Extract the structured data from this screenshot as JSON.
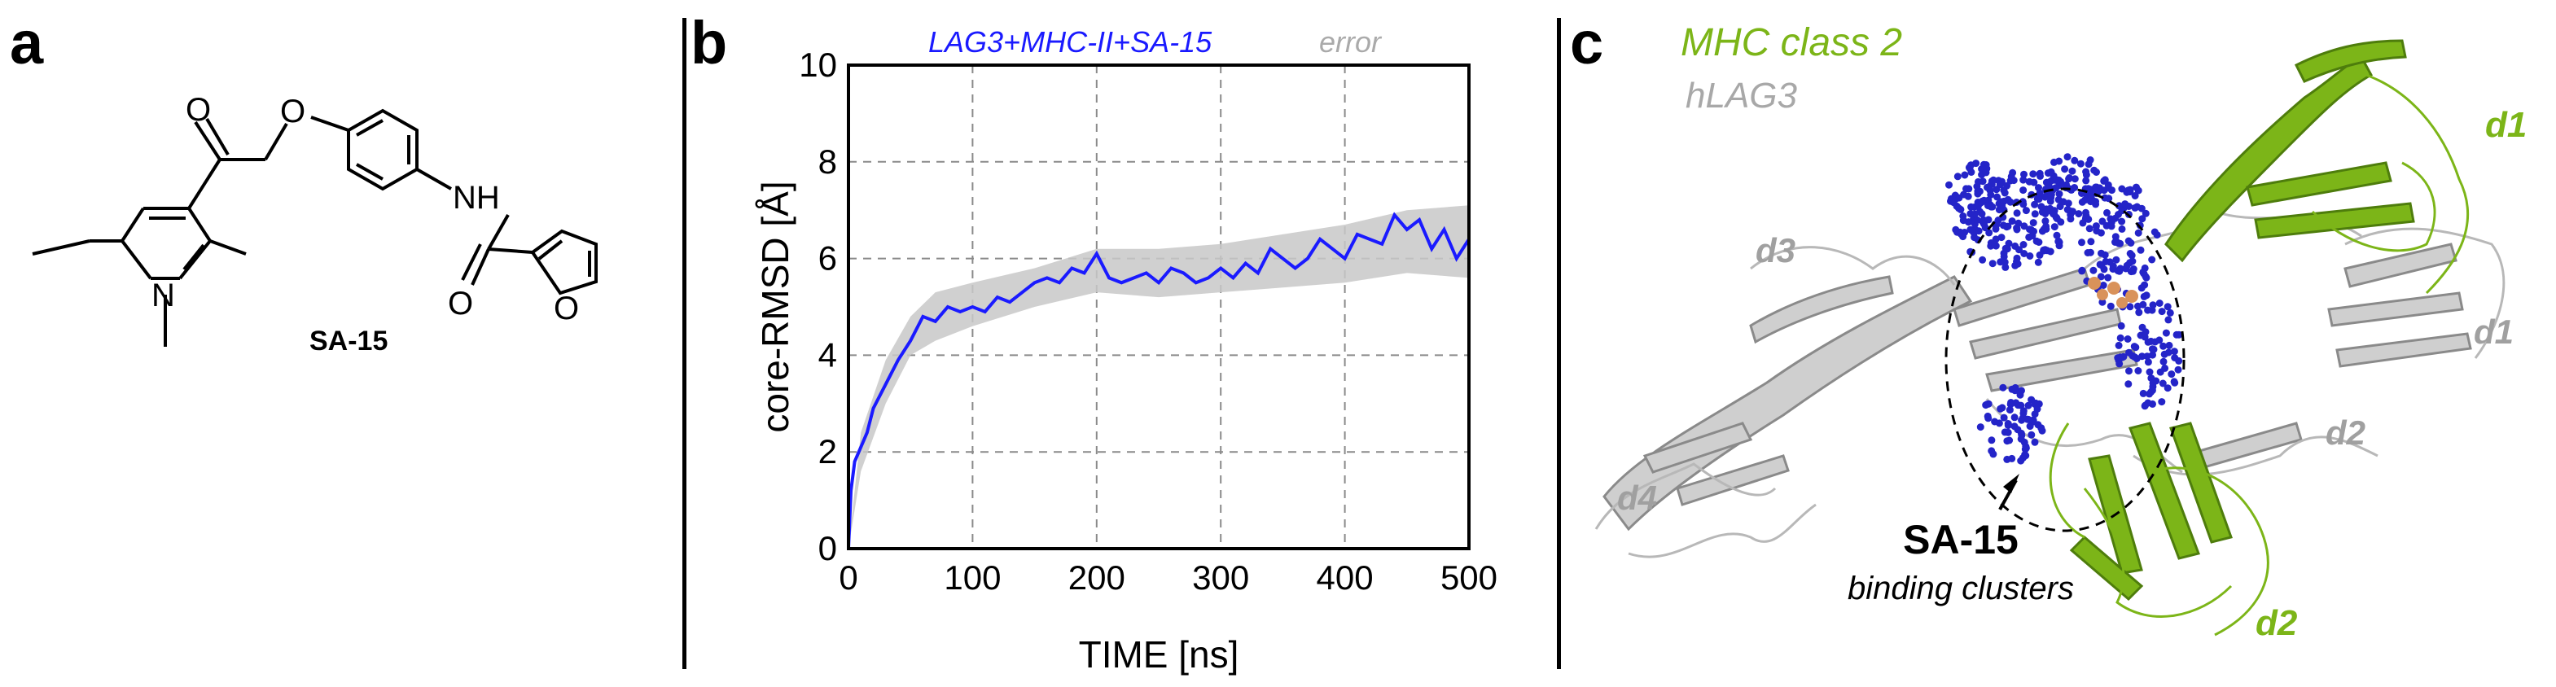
{
  "panels": {
    "a": {
      "letter": "a",
      "compound_label": "SA-15",
      "atom_labels": {
        "oxygen": "O",
        "nitrogen": "N",
        "amide_nh": "NH"
      }
    },
    "b": {
      "letter": "b",
      "legend_series": "LAG3+MHC-II+SA-15",
      "legend_error": "error"
    },
    "c": {
      "letter": "c",
      "legend_mhc": "MHC class 2",
      "legend_hlag3": "hLAG3",
      "domain_labels_green": [
        "d1",
        "d2"
      ],
      "domain_labels_gray": [
        "d1",
        "d2",
        "d3",
        "d4"
      ],
      "cluster_title": "SA-15",
      "cluster_subtitle": "binding clusters"
    }
  },
  "colors": {
    "rmsd_line": "#1a1aff",
    "error_band": "#c8c8c8",
    "mhc_green": "#7cb518",
    "lag3_gray": "#b0b0b0",
    "cluster_blue": "#2424c8"
  },
  "chart_data": {
    "type": "line",
    "title": "",
    "xlabel": "TIME [ns]",
    "ylabel": "core-RMSD [Å]",
    "xlim": [
      0,
      500
    ],
    "ylim": [
      0,
      10
    ],
    "xticks": [
      0,
      100,
      200,
      300,
      400,
      500
    ],
    "yticks": [
      0,
      2,
      4,
      6,
      8,
      10
    ],
    "grid": true,
    "legend_placement": "top",
    "series": [
      {
        "name": "LAG3+MHC-II+SA-15",
        "x": [
          0,
          2,
          5,
          10,
          15,
          20,
          30,
          40,
          50,
          60,
          70,
          80,
          90,
          100,
          110,
          120,
          130,
          140,
          150,
          160,
          170,
          180,
          190,
          200,
          210,
          220,
          230,
          240,
          250,
          260,
          270,
          280,
          290,
          300,
          310,
          320,
          330,
          340,
          350,
          360,
          370,
          380,
          390,
          400,
          410,
          420,
          430,
          440,
          450,
          460,
          470,
          480,
          490,
          500
        ],
        "y": [
          0,
          1.2,
          1.8,
          2.1,
          2.4,
          2.9,
          3.4,
          3.9,
          4.3,
          4.8,
          4.7,
          5.0,
          4.9,
          5.0,
          4.9,
          5.2,
          5.1,
          5.3,
          5.5,
          5.6,
          5.5,
          5.8,
          5.7,
          6.1,
          5.6,
          5.5,
          5.6,
          5.7,
          5.5,
          5.8,
          5.7,
          5.5,
          5.6,
          5.8,
          5.6,
          5.9,
          5.7,
          6.2,
          6.0,
          5.8,
          6.0,
          6.4,
          6.2,
          6.0,
          6.5,
          6.4,
          6.3,
          6.9,
          6.6,
          6.8,
          6.2,
          6.6,
          6.0,
          6.4
        ]
      },
      {
        "name": "error",
        "x": [
          0,
          10,
          30,
          50,
          70,
          100,
          150,
          200,
          250,
          300,
          350,
          400,
          450,
          500
        ],
        "y_low": [
          0,
          1.6,
          3.0,
          4.0,
          4.3,
          4.6,
          5.0,
          5.3,
          5.2,
          5.3,
          5.4,
          5.5,
          5.7,
          5.6
        ],
        "y_high": [
          0,
          2.4,
          3.9,
          4.8,
          5.3,
          5.5,
          5.8,
          6.2,
          6.2,
          6.3,
          6.5,
          6.7,
          7.0,
          7.1
        ]
      }
    ]
  }
}
